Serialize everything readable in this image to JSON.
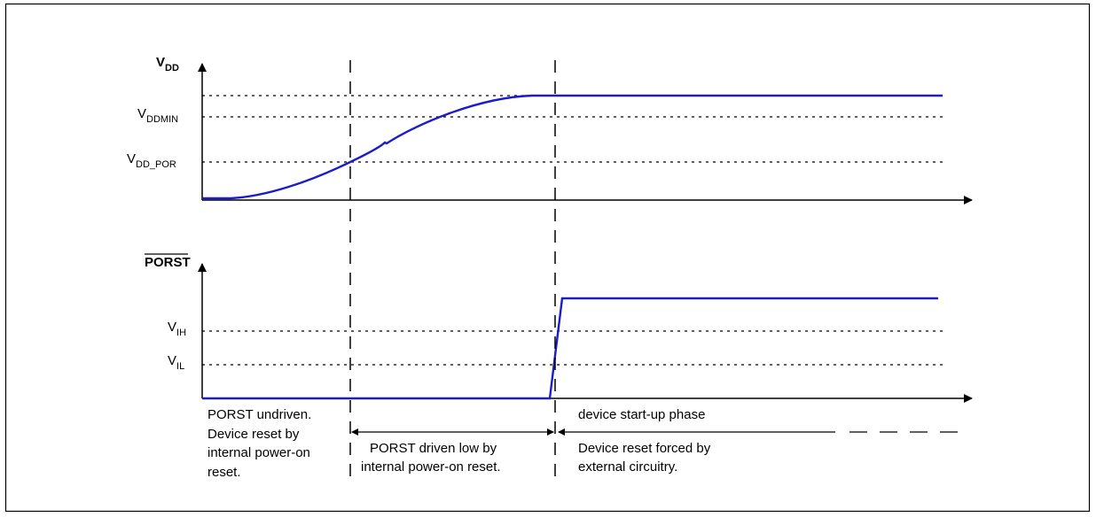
{
  "vdd_panel": {
    "title_main": "V",
    "title_sub": "DD",
    "levels": [
      {
        "main": "V",
        "sub": "DDMIN"
      },
      {
        "main": "V",
        "sub": "DD_POR"
      }
    ]
  },
  "porst_panel": {
    "title": "PORST",
    "levels": [
      {
        "main": "V",
        "sub": "IH"
      },
      {
        "main": "V",
        "sub": "IL"
      }
    ]
  },
  "phases": {
    "undriven": [
      "PORST undriven.",
      "Device reset by",
      "internal power-on",
      "reset."
    ],
    "driven_low": [
      "PORST driven low by",
      "internal power-on reset."
    ],
    "startup": "device start-up phase",
    "external": [
      "Device reset forced by",
      "external circuitry."
    ]
  },
  "colors": {
    "signal": "#1c1cc8",
    "axis": "#000000"
  }
}
